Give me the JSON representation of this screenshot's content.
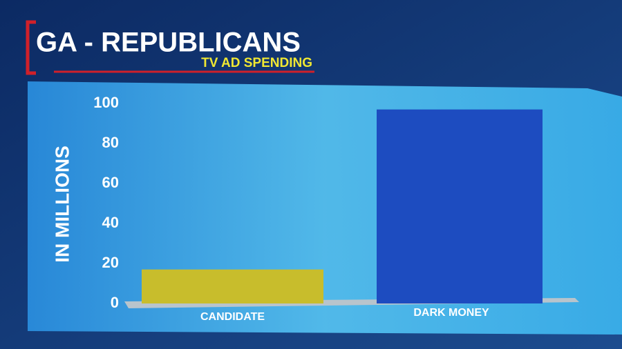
{
  "chart_data": {
    "type": "bar",
    "title": "GA - REPUBLICANS",
    "subtitle": "TV AD SPENDING",
    "y_label": "IN MILLIONS",
    "categories": [
      "CANDIDATE",
      "DARK MONEY"
    ],
    "values": [
      17,
      97
    ],
    "colors": [
      "#c8bd2c",
      "#1d4cc0"
    ],
    "ylim": [
      0,
      100
    ],
    "yticks": [
      0,
      20,
      40,
      60,
      80,
      100
    ],
    "grid": false
  }
}
